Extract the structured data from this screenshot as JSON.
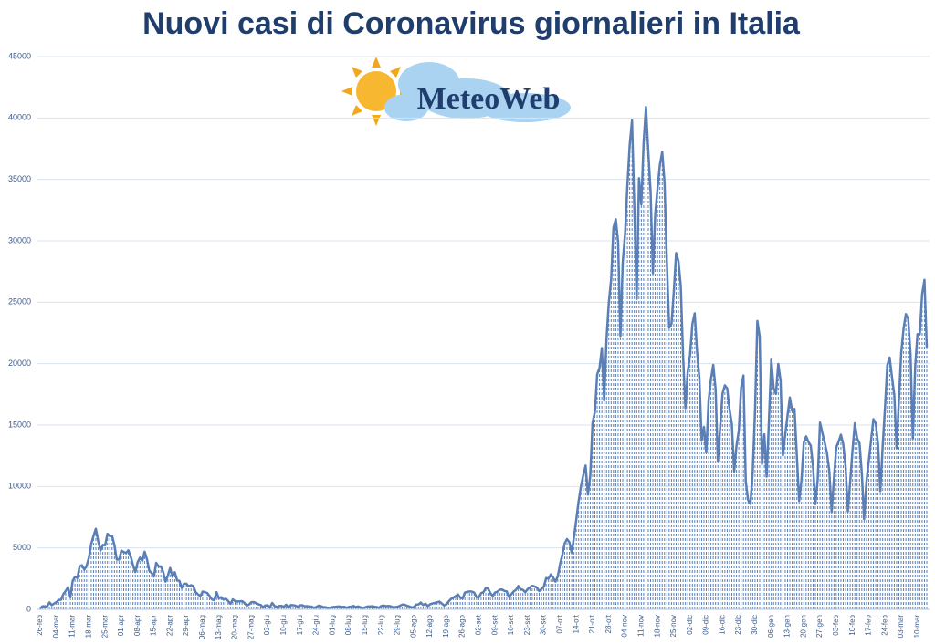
{
  "chart_data": {
    "type": "area",
    "title": "Nuovi casi di Coronavirus giornalieri in Italia",
    "logo": "MeteoWeb",
    "color": "#5a7fb6",
    "grid": true,
    "ylim": [
      0,
      45000
    ],
    "yticks": [
      0,
      5000,
      10000,
      15000,
      20000,
      25000,
      30000,
      35000,
      40000,
      45000
    ],
    "categories": [
      "26-feb",
      null,
      null,
      null,
      null,
      null,
      null,
      "04-mar",
      null,
      null,
      null,
      null,
      null,
      null,
      "11-mar",
      null,
      null,
      null,
      null,
      null,
      null,
      "18-mar",
      null,
      null,
      null,
      null,
      null,
      null,
      "25-mar",
      null,
      null,
      null,
      null,
      null,
      null,
      "01-apr",
      null,
      null,
      null,
      null,
      null,
      null,
      "08-apr",
      null,
      null,
      null,
      null,
      null,
      null,
      "15-apr",
      null,
      null,
      null,
      null,
      null,
      null,
      "22-apr",
      null,
      null,
      null,
      null,
      null,
      null,
      "29-apr",
      null,
      null,
      null,
      null,
      null,
      null,
      "06-mag",
      null,
      null,
      null,
      null,
      null,
      null,
      "13-mag",
      null,
      null,
      null,
      null,
      null,
      null,
      "20-mag",
      null,
      null,
      null,
      null,
      null,
      null,
      "27-mag",
      null,
      null,
      null,
      null,
      null,
      null,
      "03-giu",
      null,
      null,
      null,
      null,
      null,
      null,
      "10-giu",
      null,
      null,
      null,
      null,
      null,
      null,
      "17-giu",
      null,
      null,
      null,
      null,
      null,
      null,
      "24-giu",
      null,
      null,
      null,
      null,
      null,
      null,
      "01-lug",
      null,
      null,
      null,
      null,
      null,
      null,
      "08-lug",
      null,
      null,
      null,
      null,
      null,
      null,
      "15-lug",
      null,
      null,
      null,
      null,
      null,
      null,
      "22-lug",
      null,
      null,
      null,
      null,
      null,
      null,
      "29-lug",
      null,
      null,
      null,
      null,
      null,
      null,
      "05-ago",
      null,
      null,
      null,
      null,
      null,
      null,
      "12-ago",
      null,
      null,
      null,
      null,
      null,
      null,
      "19-ago",
      null,
      null,
      null,
      null,
      null,
      null,
      "26-ago",
      null,
      null,
      null,
      null,
      null,
      null,
      "02-set",
      null,
      null,
      null,
      null,
      null,
      null,
      "09-set",
      null,
      null,
      null,
      null,
      null,
      null,
      "16-set",
      null,
      null,
      null,
      null,
      null,
      null,
      "23-set",
      null,
      null,
      null,
      null,
      null,
      null,
      "30-set",
      null,
      null,
      null,
      null,
      null,
      null,
      "07-ott",
      null,
      null,
      null,
      null,
      null,
      null,
      "14-ott",
      null,
      null,
      null,
      null,
      null,
      null,
      "21-ott",
      null,
      null,
      null,
      null,
      null,
      null,
      "28-ott",
      null,
      null,
      null,
      null,
      null,
      null,
      "04-nov",
      null,
      null,
      null,
      null,
      null,
      null,
      "11-nov",
      null,
      null,
      null,
      null,
      null,
      null,
      "18-nov",
      null,
      null,
      null,
      null,
      null,
      null,
      "25-nov",
      null,
      null,
      null,
      null,
      null,
      null,
      "02-dic",
      null,
      null,
      null,
      null,
      null,
      null,
      "09-dic",
      null,
      null,
      null,
      null,
      null,
      null,
      "16-dic",
      null,
      null,
      null,
      null,
      null,
      null,
      "23-dic",
      null,
      null,
      null,
      null,
      null,
      null,
      "30-dic",
      null,
      null,
      null,
      null,
      null,
      null,
      "06-gen",
      null,
      null,
      null,
      null,
      null,
      null,
      "13-gen",
      null,
      null,
      null,
      null,
      null,
      null,
      "20-gen",
      null,
      null,
      null,
      null,
      null,
      null,
      "27-gen",
      null,
      null,
      null,
      null,
      null,
      null,
      "03-feb",
      null,
      null,
      null,
      null,
      null,
      null,
      "10-feb",
      null,
      null,
      null,
      null,
      null,
      null,
      "17-feb",
      null,
      null,
      null,
      null,
      null,
      null,
      "24-feb",
      null,
      null,
      null,
      null,
      null,
      null,
      "03-mar",
      null,
      null,
      null,
      null,
      null,
      null,
      "10-mar",
      null,
      null,
      null,
      null
    ],
    "values": [
      78,
      250,
      238,
      240,
      566,
      342,
      466,
      587,
      769,
      778,
      1247,
      1492,
      1797,
      977,
      2313,
      2651,
      2547,
      3497,
      3590,
      3233,
      3526,
      4207,
      5322,
      5986,
      6557,
      5560,
      4789,
      5249,
      5210,
      6153,
      5959,
      5974,
      5217,
      4050,
      4053,
      4782,
      4668,
      4585,
      4805,
      4316,
      3599,
      3039,
      3836,
      4204,
      3951,
      4694,
      4092,
      3153,
      2972,
      2667,
      3786,
      3493,
      3491,
      3047,
      2256,
      2729,
      3370,
      2646,
      3021,
      2357,
      2324,
      1739,
      2091,
      2086,
      1872,
      1965,
      1900,
      1389,
      1221,
      1075,
      1444,
      1401,
      1327,
      1083,
      802,
      744,
      1402,
      888,
      992,
      789,
      875,
      675,
      451,
      813,
      665,
      642,
      652,
      669,
      531,
      300,
      397,
      584,
      593,
      516,
      416,
      355,
      178,
      318,
      321,
      177,
      518,
      270,
      197,
      280,
      283,
      202,
      379,
      163,
      346,
      338,
      301,
      210,
      329,
      333,
      251,
      262,
      224,
      218,
      122,
      190,
      296,
      259,
      175,
      174,
      126,
      142,
      187,
      201,
      223,
      235,
      192,
      208,
      138,
      193,
      229,
      276,
      188,
      234,
      169,
      114,
      162,
      230,
      233,
      249,
      219,
      190,
      129,
      282,
      306,
      252,
      275,
      255,
      170,
      181,
      212,
      289,
      386,
      379,
      295,
      239,
      159,
      190,
      384,
      402,
      552,
      347,
      463,
      259,
      412,
      481,
      523,
      574,
      629,
      479,
      320,
      403,
      642,
      845,
      947,
      1071,
      1210,
      953,
      878,
      1367,
      1411,
      1462,
      1444,
      1365,
      996,
      978,
      1326,
      1397,
      1733,
      1695,
      1297,
      1108,
      1370,
      1434,
      1597,
      1616,
      1501,
      1458,
      1008,
      1229,
      1452,
      1585,
      1907,
      1638,
      1587,
      1392,
      1640,
      1786,
      1912,
      1869,
      1766,
      1494,
      1648,
      1851,
      2548,
      2499,
      2844,
      2578,
      2257,
      2677,
      3678,
      4458,
      5372,
      5724,
      5456,
      4619,
      5901,
      7332,
      8804,
      10010,
      10925,
      11705,
      9338,
      10874,
      15199,
      16079,
      19143,
      19644,
      21273,
      17012,
      21994,
      24991,
      26831,
      31084,
      31758,
      29907,
      22253,
      28244,
      30550,
      34505,
      37809,
      39811,
      32616,
      25271,
      35098,
      32961,
      37978,
      40902,
      37255,
      33979,
      27354,
      32191,
      34283,
      36176,
      37242,
      34767,
      28337,
      22930,
      23232,
      25853,
      29003,
      28352,
      26323,
      20648,
      16377,
      19350,
      20709,
      23225,
      24099,
      21052,
      18887,
      13720,
      14842,
      12756,
      16999,
      18727,
      19903,
      17938,
      12030,
      14844,
      17572,
      18236,
      17992,
      16308,
      15104,
      11212,
      13318,
      14522,
      18040,
      19037,
      10407,
      8913,
      8585,
      11224,
      16202,
      23477,
      22211,
      11831,
      14245,
      10800,
      15378,
      20331,
      18020,
      17533,
      19978,
      18627,
      12532,
      14242,
      15774,
      17246,
      16146,
      16310,
      12545,
      8825,
      10497,
      13571,
      14078,
      13633,
      13331,
      11629,
      8561,
      10593,
      15204,
      14372,
      13574,
      12715,
      11252,
      7925,
      10630,
      13189,
      13659,
      14218,
      13442,
      11641,
      7970,
      10404,
      12956,
      15146,
      13908,
      13532,
      11068,
      7351,
      10386,
      12074,
      13762,
      15479,
      15144,
      13452,
      9630,
      13314,
      16424,
      19886,
      20499,
      18916,
      17455,
      13114,
      17083,
      20884,
      22865,
      24036,
      23641,
      20765,
      13902,
      19749,
      22409,
      22409,
      25673,
      26824,
      21315
    ]
  }
}
